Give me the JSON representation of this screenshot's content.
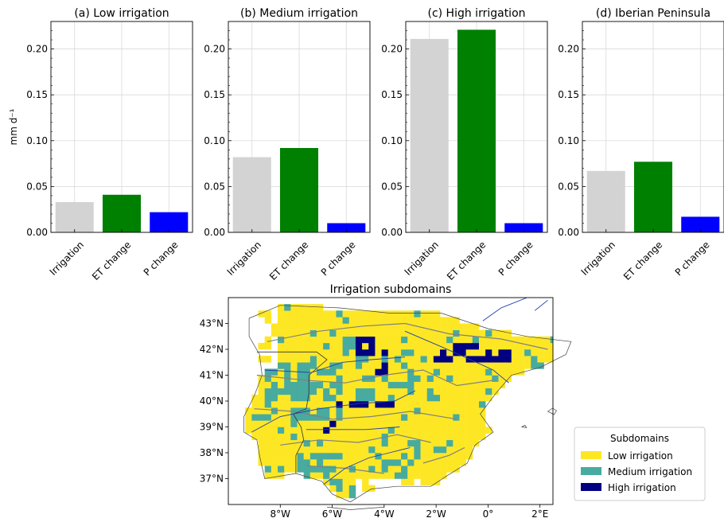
{
  "chart_data": [
    {
      "type": "bar",
      "title": "(a) Low irrigation",
      "ylabel": "mm d⁻¹",
      "categories": [
        "Irrigation",
        "ET change",
        "P change"
      ],
      "values": [
        0.033,
        0.041,
        0.022
      ],
      "colors": [
        "#d3d3d3",
        "#008000",
        "#0000ff"
      ],
      "ylim": [
        0,
        0.23
      ],
      "yticks": [
        "0.00",
        "0.05",
        "0.10",
        "0.15",
        "0.20"
      ],
      "grid": true
    },
    {
      "type": "bar",
      "title": "(b) Medium irrigation",
      "categories": [
        "Irrigation",
        "ET change",
        "P change"
      ],
      "values": [
        0.082,
        0.092,
        0.01
      ],
      "colors": [
        "#d3d3d3",
        "#008000",
        "#0000ff"
      ],
      "ylim": [
        0,
        0.23
      ],
      "yticks": [
        "0.00",
        "0.05",
        "0.10",
        "0.15",
        "0.20"
      ],
      "grid": true
    },
    {
      "type": "bar",
      "title": "(c) High irrigation",
      "categories": [
        "Irrigation",
        "ET change",
        "P change"
      ],
      "values": [
        0.211,
        0.221,
        0.01
      ],
      "colors": [
        "#d3d3d3",
        "#008000",
        "#0000ff"
      ],
      "ylim": [
        0,
        0.23
      ],
      "yticks": [
        "0.00",
        "0.05",
        "0.10",
        "0.15",
        "0.20"
      ],
      "grid": true
    },
    {
      "type": "bar",
      "title": "(d) Iberian Peninsula",
      "categories": [
        "Irrigation",
        "ET change",
        "P change"
      ],
      "values": [
        0.067,
        0.077,
        0.017
      ],
      "colors": [
        "#d3d3d3",
        "#008000",
        "#0000ff"
      ],
      "ylim": [
        0,
        0.23
      ],
      "yticks": [
        "0.00",
        "0.05",
        "0.10",
        "0.15",
        "0.20"
      ],
      "grid": true
    },
    {
      "type": "heatmap",
      "title": "Irrigation subdomains",
      "xticks": [
        "8°W",
        "6°W",
        "4°W",
        "2°W",
        "0°",
        "2°E"
      ],
      "yticks": [
        "43°N",
        "42°N",
        "41°N",
        "40°N",
        "39°N",
        "38°N",
        "37°N"
      ],
      "xlim": [
        -10,
        2.5
      ],
      "ylim": [
        36,
        44
      ],
      "legend": {
        "title": "Subdomains",
        "placement": "lower-right outside",
        "entries": [
          {
            "label": "Low irrigation",
            "color": "#fde725"
          },
          {
            "label": "Medium irrigation",
            "color": "#48ab9f"
          },
          {
            "label": "High irrigation",
            "color": "#000080"
          }
        ]
      }
    }
  ]
}
